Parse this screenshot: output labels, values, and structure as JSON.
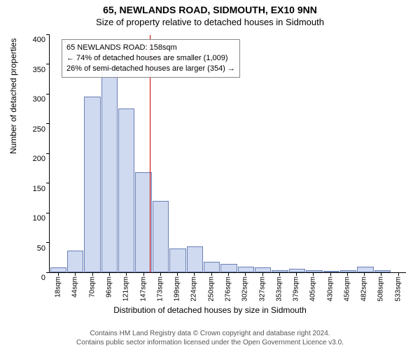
{
  "title_main": "65, NEWLANDS ROAD, SIDMOUTH, EX10 9NN",
  "title_sub": "Size of property relative to detached houses in Sidmouth",
  "ylabel": "Number of detached properties",
  "xlabel": "Distribution of detached houses by size in Sidmouth",
  "footer": {
    "line1": "Contains HM Land Registry data © Crown copyright and database right 2024.",
    "line2": "Contains public sector information licensed under the Open Government Licence v3.0."
  },
  "chart": {
    "type": "histogram",
    "ylim_max": 400,
    "ytick_step": 50,
    "bar_fill": "#cfd9f0",
    "bar_stroke": "#6a7fb5",
    "ref_line_color": "#cc0000",
    "ref_line_bin_index": 5,
    "categories": [
      "18sqm",
      "44sqm",
      "70sqm",
      "96sqm",
      "121sqm",
      "147sqm",
      "173sqm",
      "199sqm",
      "224sqm",
      "250sqm",
      "276sqm",
      "302sqm",
      "327sqm",
      "353sqm",
      "379sqm",
      "405sqm",
      "430sqm",
      "456sqm",
      "482sqm",
      "508sqm",
      "533sqm"
    ],
    "values": [
      8,
      36,
      295,
      345,
      275,
      168,
      120,
      40,
      44,
      18,
      14,
      10,
      8,
      4,
      6,
      4,
      2,
      3,
      10,
      3,
      0
    ]
  },
  "annotation": {
    "line1": "65 NEWLANDS ROAD: 158sqm",
    "line2": "← 74% of detached houses are smaller (1,009)",
    "line3": "26% of semi-detached houses are larger (354) →"
  }
}
